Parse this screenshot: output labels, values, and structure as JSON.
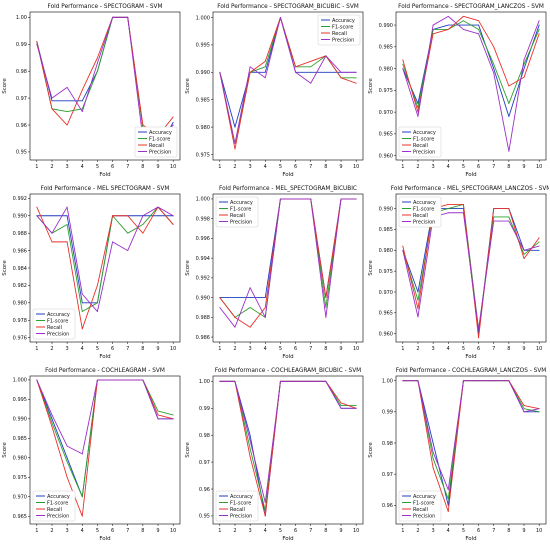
{
  "figure": {
    "colors": {
      "Accuracy": "#1f3fbf",
      "F1-score": "#2ca02c",
      "Recall": "#e8312a",
      "Precision": "#9b30c8"
    }
  },
  "chart_data": [
    {
      "type": "line",
      "title": "Fold Performance - SPECTOGRAM - SVM",
      "xlabel": "Fold",
      "ylabel": "Score",
      "x": [
        1,
        2,
        3,
        4,
        5,
        6,
        7,
        8,
        9,
        10
      ],
      "ylim": [
        0.947,
        1.002
      ],
      "yticks": [
        0.95,
        0.96,
        0.97,
        0.98,
        0.99,
        1.0
      ],
      "ytick_labels": [
        "0.95",
        "0.96",
        "0.97",
        "0.98",
        "0.99",
        "1.00"
      ],
      "legend": "bottom-right",
      "series": [
        {
          "name": "Accuracy",
          "values": [
            0.991,
            0.969,
            0.969,
            0.969,
            0.98,
            1.0,
            1.0,
            0.959,
            0.951,
            0.961
          ]
        },
        {
          "name": "F1-score",
          "values": [
            0.991,
            0.966,
            0.965,
            0.966,
            0.98,
            1.0,
            1.0,
            0.959,
            0.954,
            0.96
          ]
        },
        {
          "name": "Recall",
          "values": [
            0.991,
            0.966,
            0.96,
            0.973,
            0.985,
            1.0,
            1.0,
            0.96,
            0.956,
            0.963
          ]
        },
        {
          "name": "Precision",
          "values": [
            0.99,
            0.97,
            0.974,
            0.965,
            0.983,
            1.0,
            1.0,
            0.955,
            0.955,
            0.96
          ]
        }
      ]
    },
    {
      "type": "line",
      "title": "Fold Performance - SPECTOGRAM_BICUBIC - SVM",
      "xlabel": "Fold",
      "ylabel": "Score",
      "x": [
        1,
        2,
        3,
        4,
        5,
        6,
        7,
        8,
        9,
        10
      ],
      "ylim": [
        0.974,
        1.001
      ],
      "yticks": [
        0.975,
        0.98,
        0.985,
        0.99,
        0.995,
        1.0
      ],
      "ytick_labels": [
        "0.975",
        "0.980",
        "0.985",
        "0.990",
        "0.995",
        "1.000"
      ],
      "legend": "top-right",
      "series": [
        {
          "name": "Accuracy",
          "values": [
            0.99,
            0.98,
            0.99,
            0.99,
            1.0,
            0.99,
            0.99,
            0.99,
            0.99,
            0.99
          ]
        },
        {
          "name": "F1-score",
          "values": [
            0.99,
            0.977,
            0.99,
            0.991,
            1.0,
            0.991,
            0.991,
            0.993,
            0.989,
            0.989
          ]
        },
        {
          "name": "Recall",
          "values": [
            0.99,
            0.976,
            0.99,
            0.992,
            1.0,
            0.991,
            0.992,
            0.993,
            0.989,
            0.988
          ]
        },
        {
          "name": "Precision",
          "values": [
            0.99,
            0.977,
            0.991,
            0.989,
            1.0,
            0.99,
            0.988,
            0.993,
            0.99,
            0.99
          ]
        }
      ]
    },
    {
      "type": "line",
      "title": "Fold Performance - SPECTOGRAM_LANCZOS - SVM",
      "xlabel": "Fold",
      "ylabel": "Score",
      "x": [
        1,
        2,
        3,
        4,
        5,
        6,
        7,
        8,
        9,
        10
      ],
      "ylim": [
        0.959,
        0.993
      ],
      "yticks": [
        0.96,
        0.965,
        0.97,
        0.975,
        0.98,
        0.985,
        0.99
      ],
      "ytick_labels": [
        "0.960",
        "0.965",
        "0.970",
        "0.975",
        "0.980",
        "0.985",
        "0.990"
      ],
      "legend": "bottom-left",
      "series": [
        {
          "name": "Accuracy",
          "values": [
            0.98,
            0.972,
            0.989,
            0.99,
            0.99,
            0.99,
            0.98,
            0.969,
            0.98,
            0.99
          ]
        },
        {
          "name": "F1-score",
          "values": [
            0.981,
            0.971,
            0.989,
            0.989,
            0.991,
            0.989,
            0.981,
            0.972,
            0.981,
            0.989
          ]
        },
        {
          "name": "Recall",
          "values": [
            0.982,
            0.97,
            0.988,
            0.989,
            0.992,
            0.991,
            0.985,
            0.976,
            0.978,
            0.988
          ]
        },
        {
          "name": "Precision",
          "values": [
            0.98,
            0.969,
            0.99,
            0.992,
            0.989,
            0.988,
            0.979,
            0.961,
            0.982,
            0.991
          ]
        }
      ]
    },
    {
      "type": "line",
      "title": "Fold Performance - MEL SPECTOGRAM - SVM",
      "xlabel": "Fold",
      "ylabel": "Score",
      "x": [
        1,
        2,
        3,
        4,
        5,
        6,
        7,
        8,
        9,
        10
      ],
      "ylim": [
        0.9755,
        0.9925
      ],
      "yticks": [
        0.976,
        0.978,
        0.98,
        0.982,
        0.984,
        0.986,
        0.988,
        0.99,
        0.992
      ],
      "ytick_labels": [
        "0.976",
        "0.978",
        "0.980",
        "0.982",
        "0.984",
        "0.986",
        "0.988",
        "0.990",
        "0.992"
      ],
      "legend": "bottom-left",
      "series": [
        {
          "name": "Accuracy",
          "values": [
            0.99,
            0.99,
            0.99,
            0.98,
            0.98,
            0.99,
            0.99,
            0.99,
            0.99,
            0.99
          ]
        },
        {
          "name": "F1-score",
          "values": [
            0.99,
            0.988,
            0.989,
            0.979,
            0.98,
            0.99,
            0.988,
            0.989,
            0.991,
            0.989
          ]
        },
        {
          "name": "Recall",
          "values": [
            0.991,
            0.987,
            0.987,
            0.977,
            0.982,
            0.99,
            0.99,
            0.988,
            0.991,
            0.989
          ]
        },
        {
          "name": "Precision",
          "values": [
            0.99,
            0.988,
            0.991,
            0.981,
            0.979,
            0.987,
            0.986,
            0.99,
            0.991,
            0.99
          ]
        }
      ]
    },
    {
      "type": "line",
      "title": "Fold Performance - MEL_SPECTOGRAM_BICUBIC",
      "xlabel": "Fold",
      "ylabel": "Score",
      "x": [
        1,
        2,
        3,
        4,
        5,
        6,
        7,
        8,
        9,
        10
      ],
      "ylim": [
        0.9855,
        1.0005
      ],
      "yticks": [
        0.986,
        0.988,
        0.99,
        0.992,
        0.994,
        0.996,
        0.998,
        1.0
      ],
      "ytick_labels": [
        "0.986",
        "0.988",
        "0.990",
        "0.992",
        "0.994",
        "0.996",
        "0.998",
        "1.000"
      ],
      "legend": "top-left",
      "series": [
        {
          "name": "Accuracy",
          "values": [
            0.99,
            0.99,
            0.99,
            0.99,
            1.0,
            1.0,
            1.0,
            0.99,
            1.0,
            1.0
          ]
        },
        {
          "name": "F1-score",
          "values": [
            0.99,
            0.988,
            0.989,
            0.988,
            1.0,
            1.0,
            1.0,
            0.989,
            1.0,
            1.0
          ]
        },
        {
          "name": "Recall",
          "values": [
            0.99,
            0.988,
            0.987,
            0.989,
            1.0,
            1.0,
            1.0,
            0.99,
            1.0,
            1.0
          ]
        },
        {
          "name": "Precision",
          "values": [
            0.989,
            0.987,
            0.991,
            0.988,
            1.0,
            1.0,
            1.0,
            0.988,
            1.0,
            1.0
          ]
        }
      ]
    },
    {
      "type": "line",
      "title": "Fold Performance - MEL_SPECTOGRAM_LANCZOS - SVM",
      "xlabel": "Fold",
      "ylabel": "Score",
      "x": [
        1,
        2,
        3,
        4,
        5,
        6,
        7,
        8,
        9,
        10
      ],
      "ylim": [
        0.958,
        0.9935
      ],
      "yticks": [
        0.96,
        0.965,
        0.97,
        0.975,
        0.98,
        0.985,
        0.99
      ],
      "ytick_labels": [
        "0.960",
        "0.965",
        "0.970",
        "0.975",
        "0.980",
        "0.985",
        "0.990"
      ],
      "legend": "top-left",
      "series": [
        {
          "name": "Accuracy",
          "values": [
            0.98,
            0.97,
            0.99,
            0.99,
            0.99,
            0.96,
            0.99,
            0.99,
            0.98,
            0.98
          ]
        },
        {
          "name": "F1-score",
          "values": [
            0.98,
            0.968,
            0.989,
            0.99,
            0.991,
            0.961,
            0.988,
            0.988,
            0.979,
            0.982
          ]
        },
        {
          "name": "Recall",
          "values": [
            0.981,
            0.966,
            0.99,
            0.991,
            0.991,
            0.959,
            0.99,
            0.99,
            0.978,
            0.983
          ]
        },
        {
          "name": "Precision",
          "values": [
            0.98,
            0.964,
            0.988,
            0.989,
            0.989,
            0.961,
            0.987,
            0.987,
            0.98,
            0.981
          ]
        }
      ]
    },
    {
      "type": "line",
      "title": "Fold Performance - COCHLEAGRAM - SVM",
      "xlabel": "Fold",
      "ylabel": "Score",
      "x": [
        1,
        2,
        3,
        4,
        5,
        6,
        7,
        8,
        9,
        10
      ],
      "ylim": [
        0.963,
        1.001
      ],
      "yticks": [
        0.965,
        0.97,
        0.975,
        0.98,
        0.985,
        0.99,
        0.995,
        1.0
      ],
      "ytick_labels": [
        "0.965",
        "0.970",
        "0.975",
        "0.980",
        "0.985",
        "0.990",
        "0.995",
        "1.000"
      ],
      "legend": "bottom-left",
      "series": [
        {
          "name": "Accuracy",
          "values": [
            1.0,
            0.99,
            0.98,
            0.97,
            1.0,
            1.0,
            1.0,
            1.0,
            0.99,
            0.99
          ]
        },
        {
          "name": "F1-score",
          "values": [
            1.0,
            0.989,
            0.979,
            0.97,
            1.0,
            1.0,
            1.0,
            1.0,
            0.992,
            0.991
          ]
        },
        {
          "name": "Recall",
          "values": [
            1.0,
            0.988,
            0.975,
            0.965,
            1.0,
            1.0,
            1.0,
            1.0,
            0.991,
            0.99
          ]
        },
        {
          "name": "Precision",
          "values": [
            1.0,
            0.991,
            0.983,
            0.981,
            1.0,
            1.0,
            1.0,
            1.0,
            0.99,
            0.99
          ]
        }
      ]
    },
    {
      "type": "line",
      "title": "Fold Performance - COCHLEAGRAM_BICUBIC - SVM",
      "xlabel": "Fold",
      "ylabel": "Score",
      "x": [
        1,
        2,
        3,
        4,
        5,
        6,
        7,
        8,
        9,
        10
      ],
      "ylim": [
        0.947,
        1.002
      ],
      "yticks": [
        0.95,
        0.96,
        0.97,
        0.98,
        0.99,
        1.0
      ],
      "ytick_labels": [
        "0.95",
        "0.96",
        "0.97",
        "0.98",
        "0.99",
        "1.00"
      ],
      "legend": "bottom-left",
      "series": [
        {
          "name": "Accuracy",
          "values": [
            1.0,
            1.0,
            0.98,
            0.95,
            1.0,
            1.0,
            1.0,
            1.0,
            0.99,
            0.99
          ]
        },
        {
          "name": "F1-score",
          "values": [
            1.0,
            1.0,
            0.975,
            0.952,
            1.0,
            1.0,
            1.0,
            1.0,
            0.991,
            0.991
          ]
        },
        {
          "name": "Recall",
          "values": [
            1.0,
            1.0,
            0.972,
            0.95,
            1.0,
            1.0,
            1.0,
            1.0,
            0.992,
            0.99
          ]
        },
        {
          "name": "Precision",
          "values": [
            1.0,
            1.0,
            0.978,
            0.955,
            1.0,
            1.0,
            1.0,
            1.0,
            0.99,
            0.99
          ]
        }
      ]
    },
    {
      "type": "line",
      "title": "Fold Performance - COCHLEAGRAM_LANCZOS - SVM",
      "xlabel": "Fold",
      "ylabel": "Score",
      "x": [
        1,
        2,
        3,
        4,
        5,
        6,
        7,
        8,
        9,
        10
      ],
      "ylim": [
        0.954,
        1.0015
      ],
      "yticks": [
        0.96,
        0.97,
        0.98,
        0.99,
        1.0
      ],
      "ytick_labels": [
        "0.96",
        "0.97",
        "0.98",
        "0.99",
        "1.00"
      ],
      "legend": "bottom-left",
      "series": [
        {
          "name": "Accuracy",
          "values": [
            1.0,
            1.0,
            0.98,
            0.96,
            1.0,
            1.0,
            1.0,
            1.0,
            0.99,
            0.99
          ]
        },
        {
          "name": "F1-score",
          "values": [
            1.0,
            1.0,
            0.975,
            0.962,
            1.0,
            1.0,
            1.0,
            1.0,
            0.991,
            0.99
          ]
        },
        {
          "name": "Recall",
          "values": [
            1.0,
            1.0,
            0.972,
            0.958,
            1.0,
            1.0,
            1.0,
            1.0,
            0.992,
            0.991
          ]
        },
        {
          "name": "Precision",
          "values": [
            1.0,
            1.0,
            0.977,
            0.965,
            1.0,
            1.0,
            1.0,
            1.0,
            0.99,
            0.991
          ]
        }
      ]
    }
  ]
}
